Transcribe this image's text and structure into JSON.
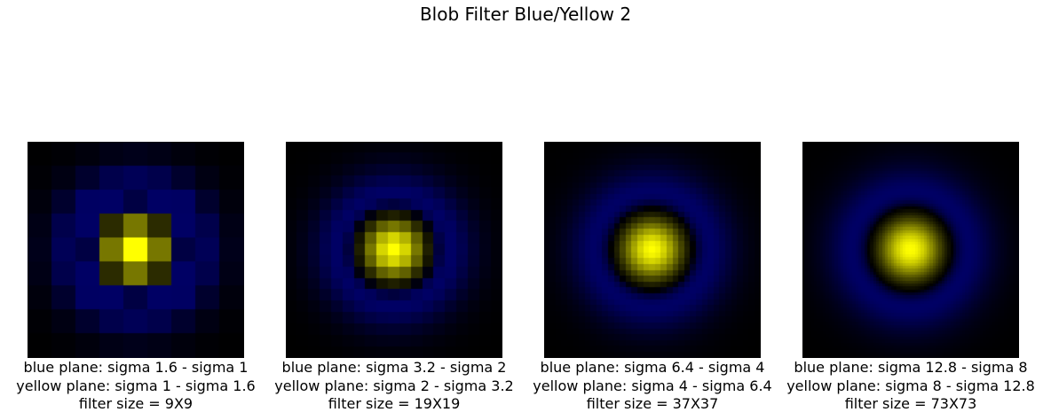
{
  "figure": {
    "title": "Blob Filter Blue/Yellow 2"
  },
  "colors": {
    "background": "#000000",
    "blue_plane": "#000064",
    "yellow_plane": "#ffff00"
  },
  "panels": [
    {
      "caption_blue": "blue plane: sigma 1.6 - sigma 1",
      "caption_yellow": "yellow plane: sigma 1 - sigma 1.6",
      "caption_size": "filter size = 9X9",
      "filter_size": 9,
      "sigma_small": 1,
      "sigma_large": 1.6
    },
    {
      "caption_blue": "blue plane: sigma 3.2 - sigma 2",
      "caption_yellow": "yellow plane: sigma 2 - sigma 3.2",
      "caption_size": "filter size = 19X19",
      "filter_size": 19,
      "sigma_small": 2,
      "sigma_large": 3.2
    },
    {
      "caption_blue": "blue plane: sigma 6.4 - sigma 4",
      "caption_yellow": "yellow plane: sigma 4 - sigma 6.4",
      "caption_size": "filter size = 37X37",
      "filter_size": 37,
      "sigma_small": 4,
      "sigma_large": 6.4
    },
    {
      "caption_blue": "blue plane: sigma 12.8 - sigma 8",
      "caption_yellow": "yellow plane: sigma 8 - sigma 12.8",
      "caption_size": "filter size = 73X73",
      "filter_size": 73,
      "sigma_small": 8,
      "sigma_large": 12.8
    }
  ]
}
